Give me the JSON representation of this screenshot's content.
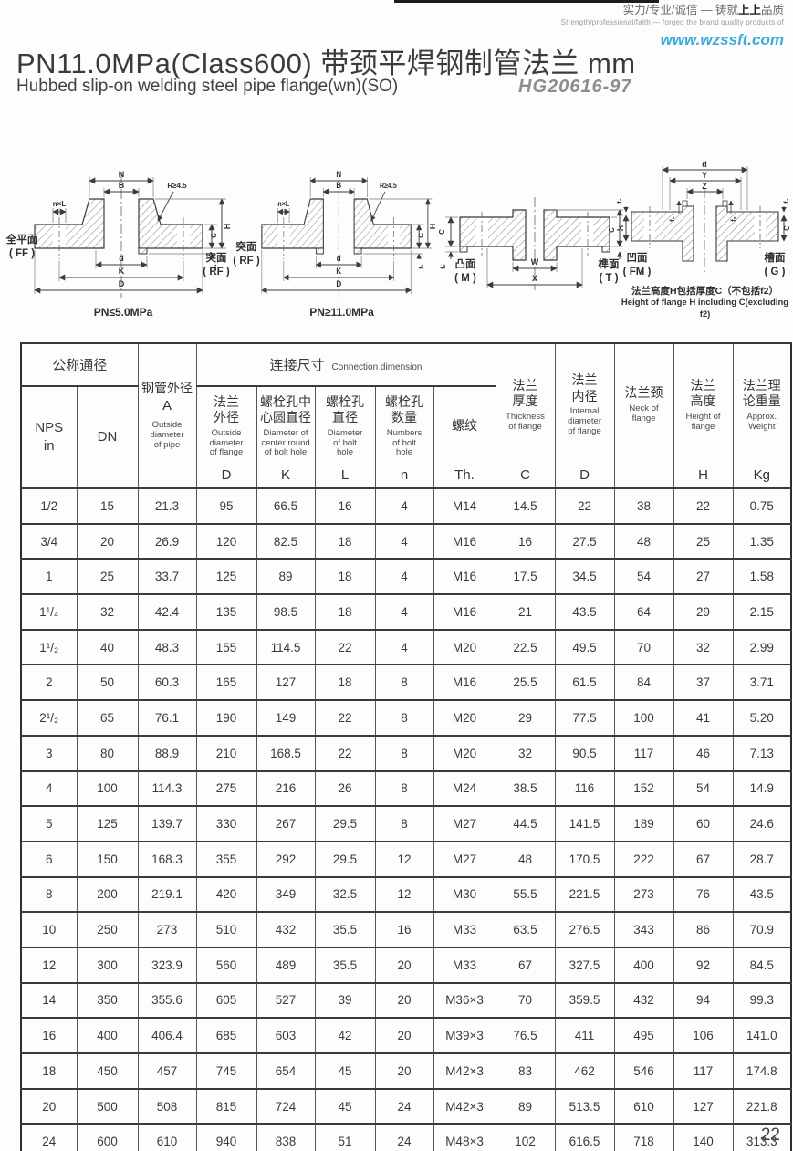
{
  "masthead": {
    "slogan_cn_prefix": "实力/专业/诚信 — 铸就",
    "slogan_cn_bold": "上上",
    "slogan_cn_suffix": "品质",
    "slogan_en": "Strength/professional/faith — forged the brand quality products of",
    "website": "www.wzssft.com"
  },
  "title": {
    "main": "PN11.0MPa(Class600) 带颈平焊钢制管法兰  mm",
    "sub": "Hubbed slip-on welding steel pipe flange(wn)(SO)",
    "standard": "HG20616-97"
  },
  "drawings": {
    "d1": {
      "caption": "PN≤5.0MPa",
      "face_left": "全平面\n( FF )",
      "face_right": "突面\n( RF )",
      "N": "N",
      "B": "B",
      "nxl": "n×L",
      "r": "R≥4.5",
      "d": "d",
      "K": "K",
      "D": "D",
      "H": "H",
      "C": "C",
      "f": "f₁"
    },
    "d2": {
      "caption": "PN≥11.0MPa",
      "face_left": "突面\n( RF )",
      "N": "N",
      "B": "B",
      "nxl": "n×L",
      "r": "R≥4.5",
      "d": "d",
      "K": "K",
      "D": "D",
      "H": "H",
      "C": "C",
      "f": "f₂"
    },
    "d3": {
      "face_left": "凸面\n( M )",
      "face_right": "榫面\n( T )",
      "W": "W",
      "X": "X",
      "H": "H",
      "C": "C",
      "f": "f₂"
    },
    "d4": {
      "face_left": "凹面\n( FM )",
      "face_right": "槽面\n( G )",
      "d": "d",
      "Y": "Y",
      "Z": "Z",
      "C": "C",
      "f3": "f₃",
      "f2": "f₂",
      "caption_cn": "法兰高度H包括厚度C（不包括f2）",
      "caption_en": "Height of flange H including C(excluding f2)"
    }
  },
  "table": {
    "h_nominal": "公称通径",
    "h_conn_cn": "连接尺寸",
    "h_conn_en": "Connection dimension",
    "nps": "NPS\nin",
    "dn": "DN",
    "pipe": {
      "cn": "钢管外径",
      "sym": "A",
      "en": "Outside\ndiameter\nof pipe"
    },
    "conn_cols": [
      {
        "cn": "法兰\n外径",
        "en": "Outside\ndiameter\nof flange",
        "sym": "D"
      },
      {
        "cn": "螺栓孔中\n心圆直径",
        "en": "Diameter of\ncenter round\nof bolt hole",
        "sym": "K"
      },
      {
        "cn": "螺栓孔\n直径",
        "en": "Diameter\nof bolt\nhole",
        "sym": "L"
      },
      {
        "cn": "螺栓孔\n数量",
        "en": "Numbers\nof bolt\nhole",
        "sym": "n"
      },
      {
        "cn": "螺纹",
        "en": "",
        "sym": "Th."
      }
    ],
    "tail_cols": [
      {
        "cn": "法兰\n厚度",
        "en": "Thickness\nof flange",
        "sym": "C"
      },
      {
        "cn": "法兰\n内径",
        "en": "Internal\ndiameter\nof flange",
        "sym": "D"
      },
      {
        "cn": "法兰颈",
        "en": "Neck of\nflange",
        "sym": ""
      },
      {
        "cn": "法兰\n高度",
        "en": "Height of\nflange",
        "sym": "H"
      },
      {
        "cn": "法兰理\n论重量",
        "en": "Approx.\nWeight",
        "sym": "Kg"
      }
    ],
    "rows": [
      [
        "1/2",
        "15",
        "21.3",
        "95",
        "66.5",
        "16",
        "4",
        "M14",
        "14.5",
        "22",
        "38",
        "22",
        "0.75"
      ],
      [
        "3/4",
        "20",
        "26.9",
        "120",
        "82.5",
        "18",
        "4",
        "M16",
        "16",
        "27.5",
        "48",
        "25",
        "1.35"
      ],
      [
        "1",
        "25",
        "33.7",
        "125",
        "89",
        "18",
        "4",
        "M16",
        "17.5",
        "34.5",
        "54",
        "27",
        "1.58"
      ],
      [
        "1¹/₄",
        "32",
        "42.4",
        "135",
        "98.5",
        "18",
        "4",
        "M16",
        "21",
        "43.5",
        "64",
        "29",
        "2.15"
      ],
      [
        "1¹/₂",
        "40",
        "48.3",
        "155",
        "114.5",
        "22",
        "4",
        "M20",
        "22.5",
        "49.5",
        "70",
        "32",
        "2.99"
      ],
      [
        "2",
        "50",
        "60.3",
        "165",
        "127",
        "18",
        "8",
        "M16",
        "25.5",
        "61.5",
        "84",
        "37",
        "3.71"
      ],
      [
        "2¹/₂",
        "65",
        "76.1",
        "190",
        "149",
        "22",
        "8",
        "M20",
        "29",
        "77.5",
        "100",
        "41",
        "5.20"
      ],
      [
        "3",
        "80",
        "88.9",
        "210",
        "168.5",
        "22",
        "8",
        "M20",
        "32",
        "90.5",
        "117",
        "46",
        "7.13"
      ],
      [
        "4",
        "100",
        "114.3",
        "275",
        "216",
        "26",
        "8",
        "M24",
        "38.5",
        "116",
        "152",
        "54",
        "14.9"
      ],
      [
        "5",
        "125",
        "139.7",
        "330",
        "267",
        "29.5",
        "8",
        "M27",
        "44.5",
        "141.5",
        "189",
        "60",
        "24.6"
      ],
      [
        "6",
        "150",
        "168.3",
        "355",
        "292",
        "29.5",
        "12",
        "M27",
        "48",
        "170.5",
        "222",
        "67",
        "28.7"
      ],
      [
        "8",
        "200",
        "219.1",
        "420",
        "349",
        "32.5",
        "12",
        "M30",
        "55.5",
        "221.5",
        "273",
        "76",
        "43.5"
      ],
      [
        "10",
        "250",
        "273",
        "510",
        "432",
        "35.5",
        "16",
        "M33",
        "63.5",
        "276.5",
        "343",
        "86",
        "70.9"
      ],
      [
        "12",
        "300",
        "323.9",
        "560",
        "489",
        "35.5",
        "20",
        "M33",
        "67",
        "327.5",
        "400",
        "92",
        "84.5"
      ],
      [
        "14",
        "350",
        "355.6",
        "605",
        "527",
        "39",
        "20",
        "M36×3",
        "70",
        "359.5",
        "432",
        "94",
        "99.3"
      ],
      [
        "16",
        "400",
        "406.4",
        "685",
        "603",
        "42",
        "20",
        "M39×3",
        "76.5",
        "411",
        "495",
        "106",
        "141.0"
      ],
      [
        "18",
        "450",
        "457",
        "745",
        "654",
        "45",
        "20",
        "M42×3",
        "83",
        "462",
        "546",
        "117",
        "174.8"
      ],
      [
        "20",
        "500",
        "508",
        "815",
        "724",
        "45",
        "24",
        "M42×3",
        "89",
        "513.5",
        "610",
        "127",
        "221.8"
      ],
      [
        "24",
        "600",
        "610",
        "940",
        "838",
        "51",
        "24",
        "M48×3",
        "102",
        "616.5",
        "718",
        "140",
        "313.3"
      ]
    ]
  },
  "page_number": "22"
}
